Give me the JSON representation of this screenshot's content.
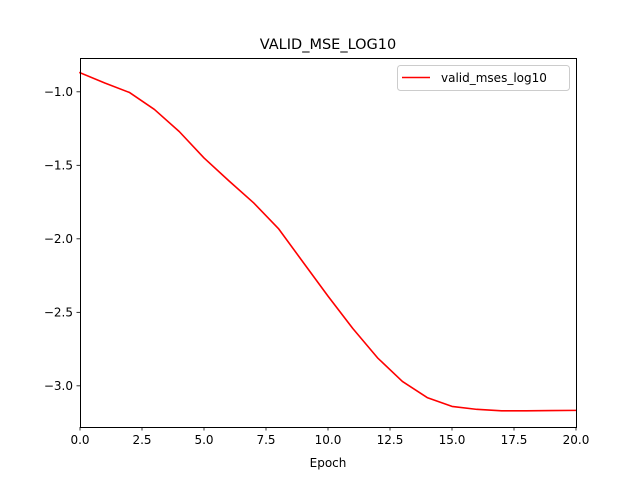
{
  "chart_data": {
    "type": "line",
    "title": "VALID_MSE_LOG10",
    "xlabel": "Epoch",
    "ylabel": "",
    "xlim": [
      0,
      20
    ],
    "ylim": [
      -3.28,
      -0.77
    ],
    "xticks": [
      0,
      2.5,
      5,
      7.5,
      10,
      12.5,
      15,
      17.5,
      20
    ],
    "xtick_labels": [
      "0.0",
      "2.5",
      "5.0",
      "7.5",
      "10.0",
      "12.5",
      "15.0",
      "17.5",
      "20.0"
    ],
    "yticks": [
      -1.0,
      -1.5,
      -2.0,
      -2.5,
      -3.0
    ],
    "ytick_labels": [
      "−1.0",
      "−1.5",
      "−2.0",
      "−2.5",
      "−3.0"
    ],
    "grid": false,
    "legend_position": "top-right",
    "series": [
      {
        "name": "valid_mses_log10",
        "color": "#ff0000",
        "x": [
          0,
          1,
          2,
          3,
          4,
          5,
          6,
          7,
          8,
          9,
          10,
          11,
          12,
          13,
          14,
          15,
          16,
          17,
          18,
          19,
          20
        ],
        "y": [
          -0.87,
          -0.94,
          -1.005,
          -1.12,
          -1.27,
          -1.45,
          -1.605,
          -1.755,
          -1.93,
          -2.16,
          -2.39,
          -2.61,
          -2.81,
          -2.97,
          -3.08,
          -3.14,
          -3.16,
          -3.17,
          -3.17,
          -3.168,
          -3.167
        ]
      }
    ]
  }
}
